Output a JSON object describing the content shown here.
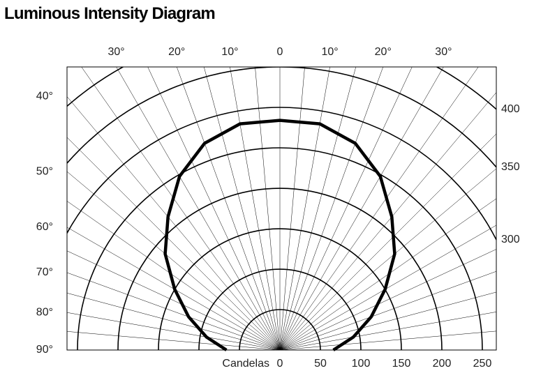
{
  "chart_data": {
    "type": "polar-line",
    "title": "Luminous Intensity Diagram",
    "r_axis_label": "Candelas",
    "angles": [
      -90,
      -80,
      -70,
      -60,
      -50,
      -40,
      -30,
      -20,
      -10,
      0,
      10,
      20,
      30,
      40,
      50,
      60,
      70,
      80,
      90
    ],
    "values": [
      66,
      92,
      120,
      150,
      185,
      215,
      248,
      272,
      284,
      284,
      284,
      272,
      248,
      215,
      185,
      150,
      120,
      92,
      66
    ],
    "color": "#000000",
    "rlim": [
      0,
      400
    ],
    "r_bottom_ticks": [
      0,
      50,
      100,
      150,
      200,
      250
    ],
    "r_right_ticks": [
      300,
      350,
      400
    ],
    "top_angle_ticks": [
      {
        "value": -30,
        "label": "30°"
      },
      {
        "value": -20,
        "label": "20°"
      },
      {
        "value": -10,
        "label": "10°"
      },
      0,
      {
        "value": 10,
        "label": "10°"
      },
      {
        "value": 20,
        "label": "20°"
      },
      {
        "value": 30,
        "label": "30°"
      }
    ],
    "left_angle_ticks": [
      {
        "value": 40,
        "label": "40°"
      },
      {
        "value": 50,
        "label": "50°"
      },
      {
        "value": 60,
        "label": "60°"
      },
      {
        "value": 70,
        "label": "70°"
      },
      {
        "value": 80,
        "label": "80°"
      },
      {
        "value": 90,
        "label": "90°"
      }
    ]
  }
}
